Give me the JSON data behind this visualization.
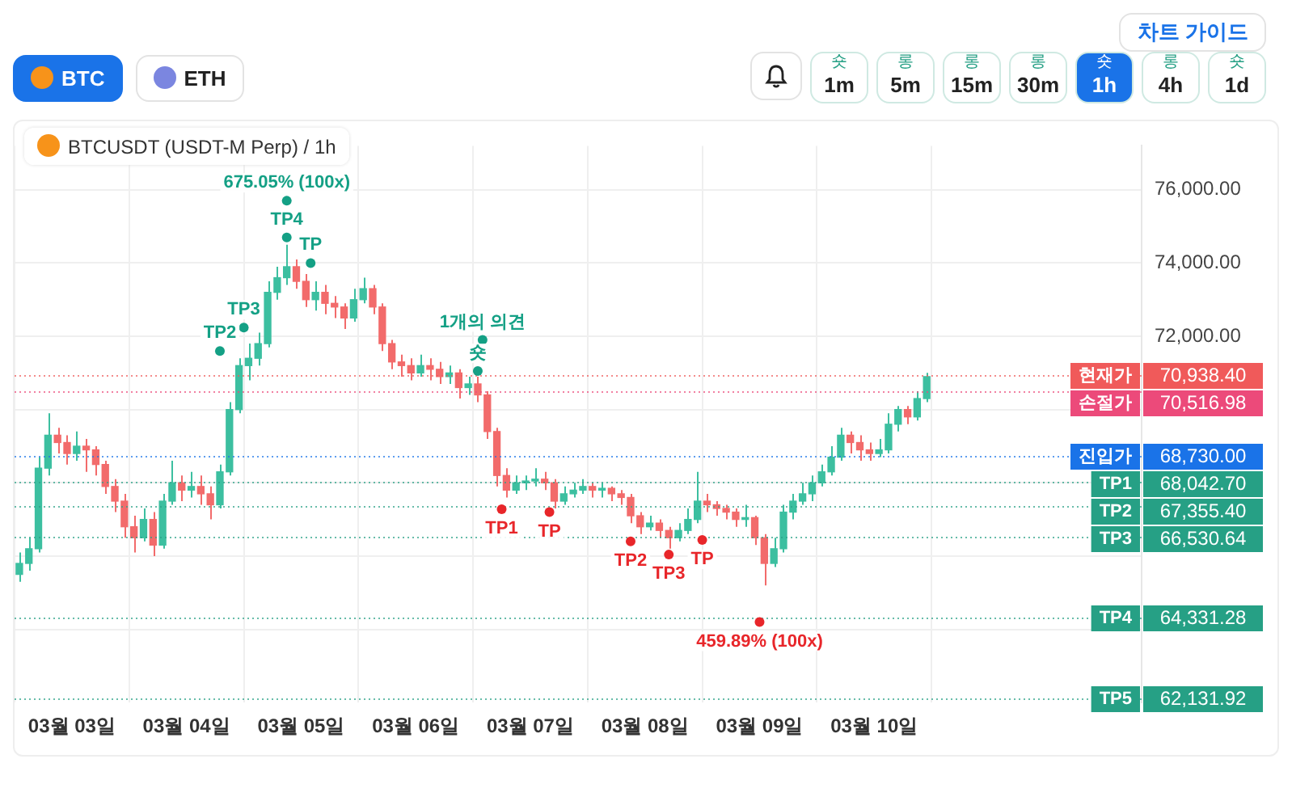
{
  "chart_data": {
    "type": "candlestick",
    "title": "BTCUSDT (USDT-M Perp) / 1h",
    "x": [
      "--03-02T13:00",
      "--03-02T15:00",
      "--03-02T17:00",
      "--03-02T19:00",
      "--03-02T21:00",
      "--03-02T23:00",
      "--03-03T01:00",
      "--03-03T03:00",
      "--03-03T05:00",
      "--03-03T07:00",
      "--03-03T09:00",
      "--03-03T11:00",
      "--03-03T13:00",
      "--03-03T15:00",
      "--03-03T17:00",
      "--03-03T19:00",
      "--03-03T21:00",
      "--03-03T23:00",
      "--03-04T01:00",
      "--03-04T03:00",
      "--03-04T05:00",
      "--03-04T07:00",
      "--03-04T09:00",
      "--03-04T11:00",
      "--03-04T13:00",
      "--03-04T15:00",
      "--03-04T17:00",
      "--03-04T19:00",
      "--03-04T21:00",
      "--03-04T23:00",
      "--03-05T01:00",
      "--03-05T03:00",
      "--03-05T05:00",
      "--03-05T07:00",
      "--03-05T09:00",
      "--03-05T11:00",
      "--03-05T13:00",
      "--03-05T15:00",
      "--03-05T17:00",
      "--03-05T19:00",
      "--03-05T21:00",
      "--03-05T23:00",
      "--03-06T01:00",
      "--03-06T03:00",
      "--03-06T05:00",
      "--03-06T07:00",
      "--03-06T09:00",
      "--03-06T11:00",
      "--03-06T13:00",
      "--03-06T15:00",
      "--03-06T17:00",
      "--03-06T19:00",
      "--03-06T21:00",
      "--03-06T23:00",
      "--03-07T01:00",
      "--03-07T03:00",
      "--03-07T05:00",
      "--03-07T07:00",
      "--03-07T09:00",
      "--03-07T11:00",
      "--03-07T13:00",
      "--03-07T15:00",
      "--03-07T17:00",
      "--03-07T19:00",
      "--03-07T21:00",
      "--03-07T23:00",
      "--03-08T01:00",
      "--03-08T03:00",
      "--03-08T05:00",
      "--03-08T07:00",
      "--03-08T09:00",
      "--03-08T11:00",
      "--03-08T13:00",
      "--03-08T15:00",
      "--03-08T17:00",
      "--03-08T19:00",
      "--03-08T21:00",
      "--03-08T23:00",
      "--03-09T01:00",
      "--03-09T03:00",
      "--03-09T05:00",
      "--03-09T07:00",
      "--03-09T09:00",
      "--03-09T11:00",
      "--03-09T13:00",
      "--03-09T15:00",
      "--03-09T17:00",
      "--03-09T19:00",
      "--03-09T21:00",
      "--03-09T23:00",
      "--03-10T01:00",
      "--03-10T03:00",
      "--03-10T05:00",
      "--03-10T07:00",
      "--03-10T09:00",
      "--03-10T11:00"
    ],
    "ohlc": [
      [
        65500,
        66100,
        65300,
        65800
      ],
      [
        65800,
        66500,
        65600,
        66200
      ],
      [
        66200,
        68700,
        66100,
        68400
      ],
      [
        68400,
        69900,
        68200,
        69300
      ],
      [
        69300,
        69500,
        68800,
        69100
      ],
      [
        69100,
        69300,
        68500,
        68800
      ],
      [
        68800,
        69400,
        68600,
        69000
      ],
      [
        69000,
        69200,
        68300,
        68900
      ],
      [
        68900,
        69000,
        68200,
        68500
      ],
      [
        68500,
        68600,
        67700,
        67900
      ],
      [
        67900,
        68100,
        67200,
        67500
      ],
      [
        67500,
        67700,
        66500,
        66800
      ],
      [
        66800,
        67100,
        66100,
        66500
      ],
      [
        66500,
        67300,
        66400,
        67000
      ],
      [
        67000,
        67200,
        66000,
        66300
      ],
      [
        66300,
        67700,
        66200,
        67500
      ],
      [
        67500,
        68600,
        67400,
        68000
      ],
      [
        68000,
        68200,
        67500,
        67800
      ],
      [
        67800,
        68300,
        67600,
        67900
      ],
      [
        67900,
        68200,
        67400,
        67700
      ],
      [
        67700,
        67900,
        67000,
        67400
      ],
      [
        67400,
        68500,
        67300,
        68300
      ],
      [
        68300,
        70200,
        68200,
        70000
      ],
      [
        70000,
        71400,
        69900,
        71200
      ],
      [
        71200,
        71800,
        70800,
        71400
      ],
      [
        71400,
        72100,
        71200,
        71800
      ],
      [
        71800,
        73500,
        71700,
        73200
      ],
      [
        73200,
        73900,
        73000,
        73600
      ],
      [
        73600,
        74500,
        73400,
        73900
      ],
      [
        73900,
        74100,
        73300,
        73500
      ],
      [
        73500,
        73700,
        72800,
        73000
      ],
      [
        73000,
        73500,
        72700,
        73200
      ],
      [
        73200,
        73400,
        72600,
        72900
      ],
      [
        72900,
        73100,
        72500,
        72800
      ],
      [
        72800,
        72900,
        72200,
        72500
      ],
      [
        72500,
        73300,
        72400,
        73000
      ],
      [
        73000,
        73600,
        72900,
        73300
      ],
      [
        73300,
        73400,
        72600,
        72800
      ],
      [
        72800,
        72900,
        71600,
        71800
      ],
      [
        71800,
        71900,
        71100,
        71300
      ],
      [
        71300,
        71500,
        70900,
        71200
      ],
      [
        71200,
        71400,
        70800,
        71000
      ],
      [
        71000,
        71500,
        70900,
        71200
      ],
      [
        71200,
        71400,
        70800,
        71100
      ],
      [
        71100,
        71300,
        70700,
        70900
      ],
      [
        70900,
        71200,
        70700,
        71000
      ],
      [
        71000,
        71100,
        70300,
        70600
      ],
      [
        70600,
        70900,
        70400,
        70700
      ],
      [
        70700,
        70900,
        70200,
        70400
      ],
      [
        70400,
        70500,
        69200,
        69400
      ],
      [
        69400,
        69500,
        67900,
        68200
      ],
      [
        68200,
        68400,
        67600,
        67800
      ],
      [
        67800,
        68200,
        67700,
        68000
      ],
      [
        68000,
        68200,
        67800,
        68050
      ],
      [
        68050,
        68400,
        67900,
        68100
      ],
      [
        68100,
        68300,
        67800,
        68000
      ],
      [
        68000,
        68100,
        67300,
        67500
      ],
      [
        67500,
        67900,
        67400,
        67700
      ],
      [
        67700,
        68000,
        67600,
        67800
      ],
      [
        67800,
        68100,
        67700,
        67900
      ],
      [
        67900,
        68000,
        67600,
        67800
      ],
      [
        67800,
        68000,
        67600,
        67850
      ],
      [
        67850,
        67900,
        67500,
        67700
      ],
      [
        67700,
        67800,
        67400,
        67600
      ],
      [
        67600,
        67700,
        66900,
        67100
      ],
      [
        67100,
        67200,
        66600,
        66800
      ],
      [
        66800,
        67100,
        66700,
        66900
      ],
      [
        66900,
        67000,
        66500,
        66700
      ],
      [
        66700,
        66800,
        66200,
        66500
      ],
      [
        66500,
        66900,
        66400,
        66700
      ],
      [
        66700,
        67300,
        66600,
        67000
      ],
      [
        67000,
        68300,
        66900,
        67500
      ],
      [
        67500,
        67700,
        67200,
        67400
      ],
      [
        67400,
        67500,
        67100,
        67300
      ],
      [
        67300,
        67400,
        67000,
        67200
      ],
      [
        67200,
        67300,
        66800,
        67000
      ],
      [
        67000,
        67400,
        66800,
        67050
      ],
      [
        67050,
        67100,
        66300,
        66500
      ],
      [
        66500,
        66600,
        65200,
        65800
      ],
      [
        65800,
        66500,
        65700,
        66200
      ],
      [
        66200,
        67400,
        66100,
        67200
      ],
      [
        67200,
        67700,
        67000,
        67500
      ],
      [
        67500,
        68000,
        67400,
        67700
      ],
      [
        67700,
        68200,
        67500,
        68000
      ],
      [
        68000,
        68500,
        67900,
        68300
      ],
      [
        68300,
        69000,
        68200,
        68700
      ],
      [
        68700,
        69500,
        68600,
        69300
      ],
      [
        69300,
        69400,
        68800,
        69100
      ],
      [
        69100,
        69300,
        68600,
        68900
      ],
      [
        68900,
        69100,
        68600,
        68800
      ],
      [
        68800,
        69200,
        68700,
        68900
      ],
      [
        68900,
        69900,
        68800,
        69600
      ],
      [
        69600,
        70100,
        69400,
        70000
      ],
      [
        70000,
        70100,
        69600,
        69800
      ],
      [
        69800,
        70500,
        69700,
        70300
      ],
      [
        70300,
        71000,
        70200,
        70900
      ]
    ],
    "colors": [
      "#3cbfa0",
      "#3cbfa0",
      "#3cbfa0",
      "#3cbfa0",
      "#f26b6b",
      "#f26b6b",
      "#3cbfa0",
      "#f26b6b",
      "#f26b6b",
      "#f26b6b",
      "#f26b6b",
      "#f26b6b",
      "#f26b6b",
      "#3cbfa0",
      "#f26b6b",
      "#3cbfa0",
      "#3cbfa0",
      "#f26b6b",
      "#3cbfa0",
      "#f26b6b",
      "#f26b6b",
      "#3cbfa0",
      "#3cbfa0",
      "#3cbfa0",
      "#3cbfa0",
      "#3cbfa0",
      "#3cbfa0",
      "#3cbfa0",
      "#3cbfa0",
      "#f26b6b",
      "#f26b6b",
      "#3cbfa0",
      "#f26b6b",
      "#f26b6b",
      "#f26b6b",
      "#3cbfa0",
      "#3cbfa0",
      "#f26b6b",
      "#f26b6b",
      "#f26b6b",
      "#f26b6b",
      "#f26b6b",
      "#3cbfa0",
      "#f26b6b",
      "#f26b6b",
      "#3cbfa0",
      "#f26b6b",
      "#3cbfa0",
      "#f26b6b",
      "#f26b6b",
      "#f26b6b",
      "#f26b6b",
      "#3cbfa0",
      "#3cbfa0",
      "#3cbfa0",
      "#f26b6b",
      "#f26b6b",
      "#3cbfa0",
      "#3cbfa0",
      "#3cbfa0",
      "#f26b6b",
      "#3cbfa0",
      "#f26b6b",
      "#f26b6b",
      "#f26b6b",
      "#f26b6b",
      "#3cbfa0",
      "#f26b6b",
      "#f26b6b",
      "#3cbfa0",
      "#3cbfa0",
      "#3cbfa0",
      "#f26b6b",
      "#f26b6b",
      "#f26b6b",
      "#f26b6b",
      "#3cbfa0",
      "#f26b6b",
      "#f26b6b",
      "#3cbfa0",
      "#3cbfa0",
      "#3cbfa0",
      "#3cbfa0",
      "#3cbfa0",
      "#3cbfa0",
      "#3cbfa0",
      "#3cbfa0",
      "#f26b6b",
      "#f26b6b",
      "#f26b6b",
      "#3cbfa0",
      "#3cbfa0",
      "#3cbfa0",
      "#f26b6b",
      "#3cbfa0",
      "#3cbfa0"
    ],
    "xlim": [
      "--03-02T12:00",
      "--03-12T08:00"
    ],
    "xticks": [
      {
        "value": "--03-03",
        "label": "03월 03일"
      },
      {
        "value": "--03-04",
        "label": "03월 04일"
      },
      {
        "value": "--03-05",
        "label": "03월 05일"
      },
      {
        "value": "--03-06",
        "label": "03월 06일"
      },
      {
        "value": "--03-07",
        "label": "03월 07일"
      },
      {
        "value": "--03-08",
        "label": "03월 08일"
      },
      {
        "value": "--03-09",
        "label": "03월 09일"
      },
      {
        "value": "--03-10",
        "label": "03월 10일"
      }
    ],
    "ylim": [
      62000,
      77200
    ],
    "yticks": [
      {
        "value": 64000,
        "label": null
      },
      {
        "value": 66000,
        "label": null
      },
      {
        "value": 68000,
        "label": null
      },
      {
        "value": 70000,
        "label": null
      },
      {
        "value": 72000,
        "label": "72,000.00"
      },
      {
        "value": 74000,
        "label": "74,000.00"
      },
      {
        "value": 76000,
        "label": "76,000.00"
      }
    ],
    "grid": true,
    "ref_lines": [
      {
        "axis": "y",
        "value": 70938.4,
        "label": "현재가 70,938.40",
        "color": "#f05a5a",
        "line_style": "dotted"
      },
      {
        "axis": "y",
        "value": 70516.98,
        "label": "손절가 70,516.98",
        "color": "#ec4a7a",
        "line_style": "dotted"
      },
      {
        "axis": "y",
        "value": 68730,
        "label": "진입가 68,730.00",
        "color": "#1a73e8",
        "line_style": "dotted"
      },
      {
        "axis": "y",
        "value": 68042.7,
        "label": "TP1 68,042.70",
        "color": "#26a085",
        "line_style": "dotted"
      },
      {
        "axis": "y",
        "value": 67355.4,
        "label": "TP2 67,355.40",
        "color": "#26a085",
        "line_style": "dotted"
      },
      {
        "axis": "y",
        "value": 66530.64,
        "label": "TP3 66,530.64",
        "color": "#26a085",
        "line_style": "dotted"
      },
      {
        "axis": "y",
        "value": 64331.28,
        "label": "TP4 64,331.28",
        "color": "#26a085",
        "line_style": "dotted"
      },
      {
        "axis": "y",
        "value": 62131.92,
        "label": "TP5 62,131.92",
        "color": "#26a085",
        "line_style": "dotted"
      }
    ],
    "annotations": [
      "차트 가이드",
      "BTC",
      "ETH",
      "숏",
      "1m",
      "롱",
      "5m",
      "롱",
      "15m",
      "롱",
      "30m",
      "숏",
      "1h",
      "롱",
      "4h",
      "숏",
      "1d",
      {
        "text": "675.05% (100x)",
        "x": "--03-04T21:00",
        "y": 75700
      },
      {
        "text": "TP4",
        "x": "--03-04T21:00",
        "y": 74700
      },
      {
        "text": "TP",
        "x": "--03-05T02:00",
        "y": 74000
      },
      {
        "text": "TP3",
        "x": "--03-04T12:00",
        "y": 72240
      },
      {
        "text": "TP2",
        "x": "--03-04T07:00",
        "y": 71600
      },
      {
        "text": "1개의 의견",
        "x": "--03-06T14:00",
        "y": 71900
      },
      {
        "text": "숏",
        "x": "--03-06T13:00",
        "y": 71050
      },
      {
        "text": "TP1",
        "x": "--03-06T18:00",
        "y": 67280
      },
      {
        "text": "TP",
        "x": "--03-07T04:00",
        "y": 67200
      },
      {
        "text": "TP2",
        "x": "--03-07T21:00",
        "y": 66400
      },
      {
        "text": "TP3",
        "x": "--03-08T05:00",
        "y": 66040
      },
      {
        "text": "TP",
        "x": "--03-08T12:00",
        "y": 66440
      },
      {
        "text": "459.89% (100x)",
        "x": "--03-09T00:00",
        "y": 64200
      }
    ]
  }
}
